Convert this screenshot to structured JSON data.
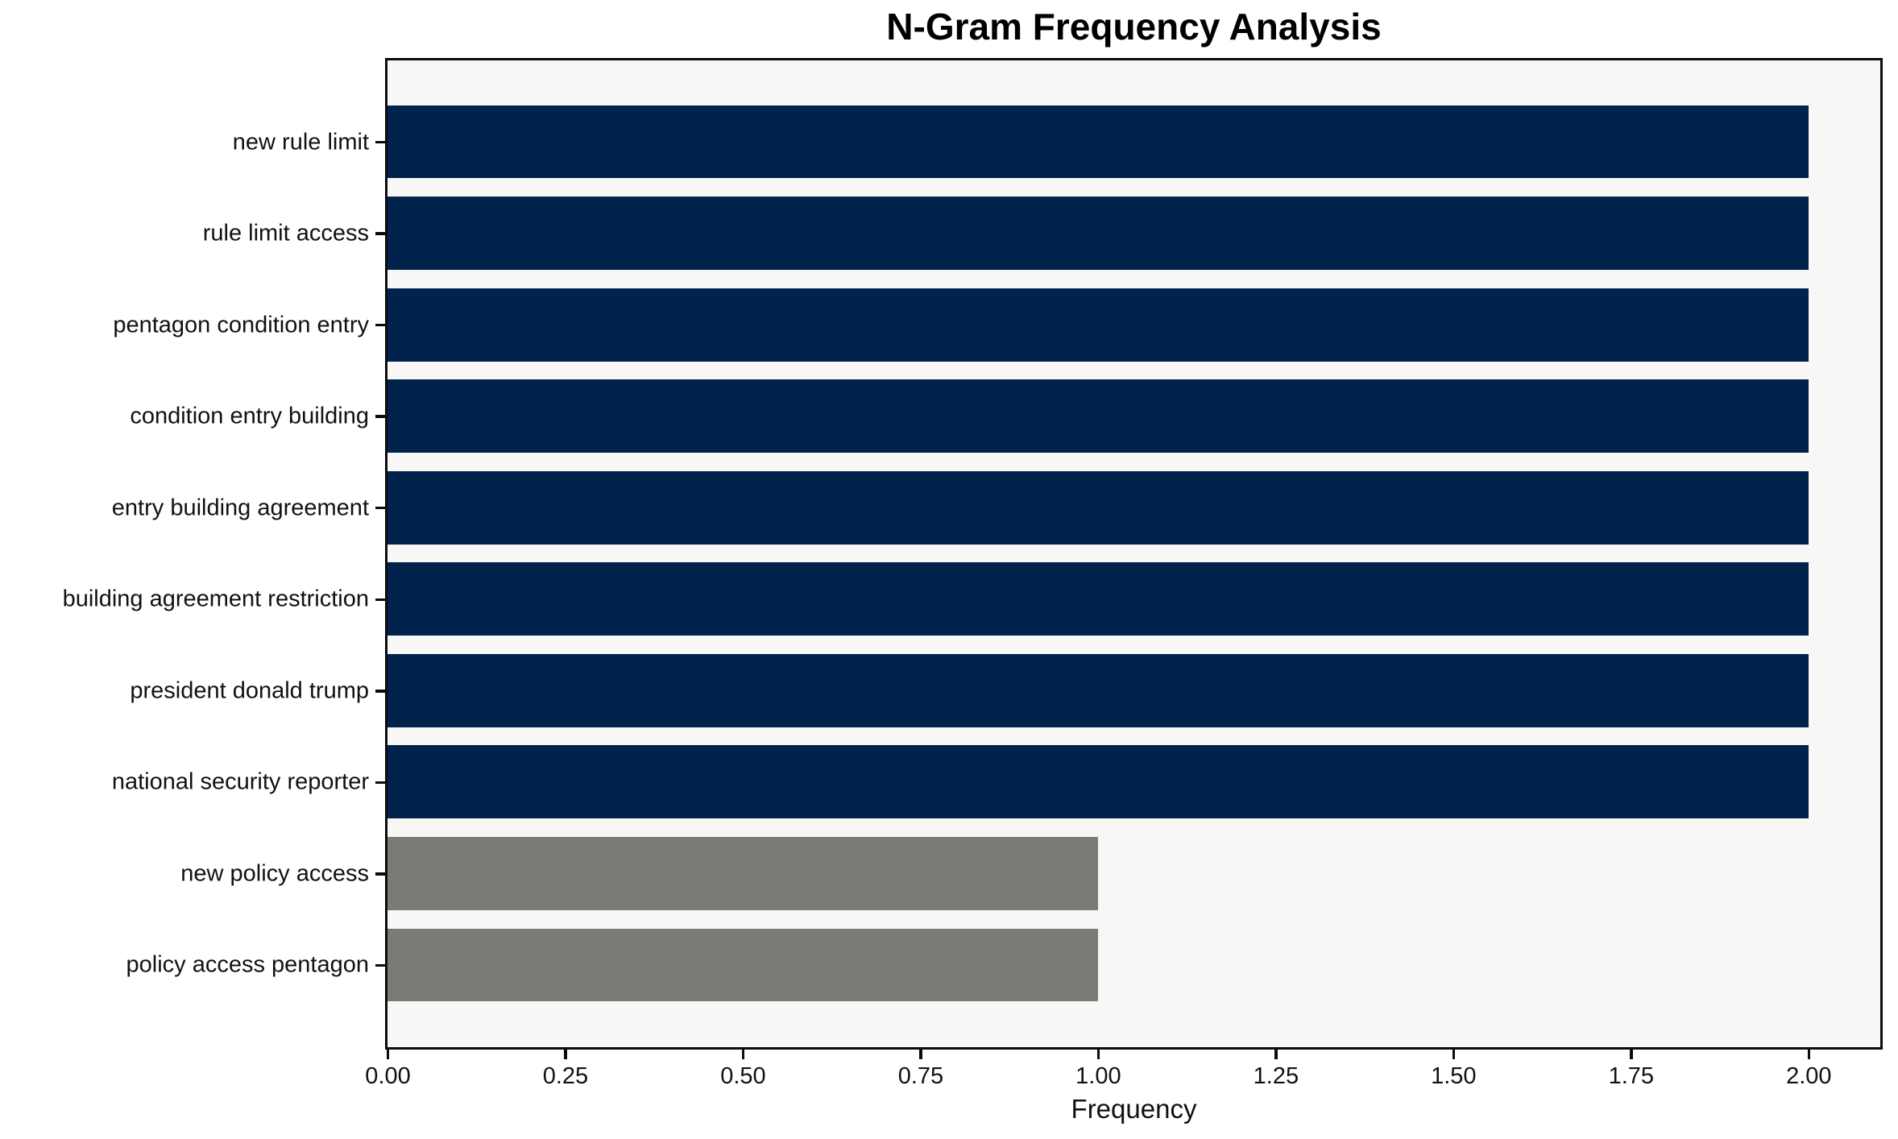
{
  "chart_data": {
    "type": "bar",
    "orientation": "horizontal",
    "title": "N-Gram Frequency Analysis",
    "xlabel": "Frequency",
    "ylabel": "",
    "categories": [
      "new rule limit",
      "rule limit access",
      "pentagon condition entry",
      "condition entry building",
      "entry building agreement",
      "building agreement restriction",
      "president donald trump",
      "national security reporter",
      "new policy access",
      "policy access pentagon"
    ],
    "values": [
      2,
      2,
      2,
      2,
      2,
      2,
      2,
      2,
      1,
      1
    ],
    "bar_colors": [
      "#00234d",
      "#00234d",
      "#00234d",
      "#00234d",
      "#00234d",
      "#00234d",
      "#00234d",
      "#00234d",
      "#7b7a77",
      "#7b7a77"
    ],
    "xlim": [
      0,
      2.1
    ],
    "x_ticks": [
      0,
      0.25,
      0.5,
      0.75,
      1.0,
      1.25,
      1.5,
      1.75,
      2.0
    ],
    "x_tick_labels": [
      "0.00",
      "0.25",
      "0.50",
      "0.75",
      "1.00",
      "1.25",
      "1.50",
      "1.75",
      "2.00"
    ],
    "grid": false,
    "legend": false,
    "colors": {
      "bar_primary": "#00234d",
      "bar_secondary": "#7b7a77",
      "plot_background": "#f8f7f6",
      "figure_background": "#ffffff",
      "spine": "#0c0c0c",
      "text": "#111111"
    }
  }
}
